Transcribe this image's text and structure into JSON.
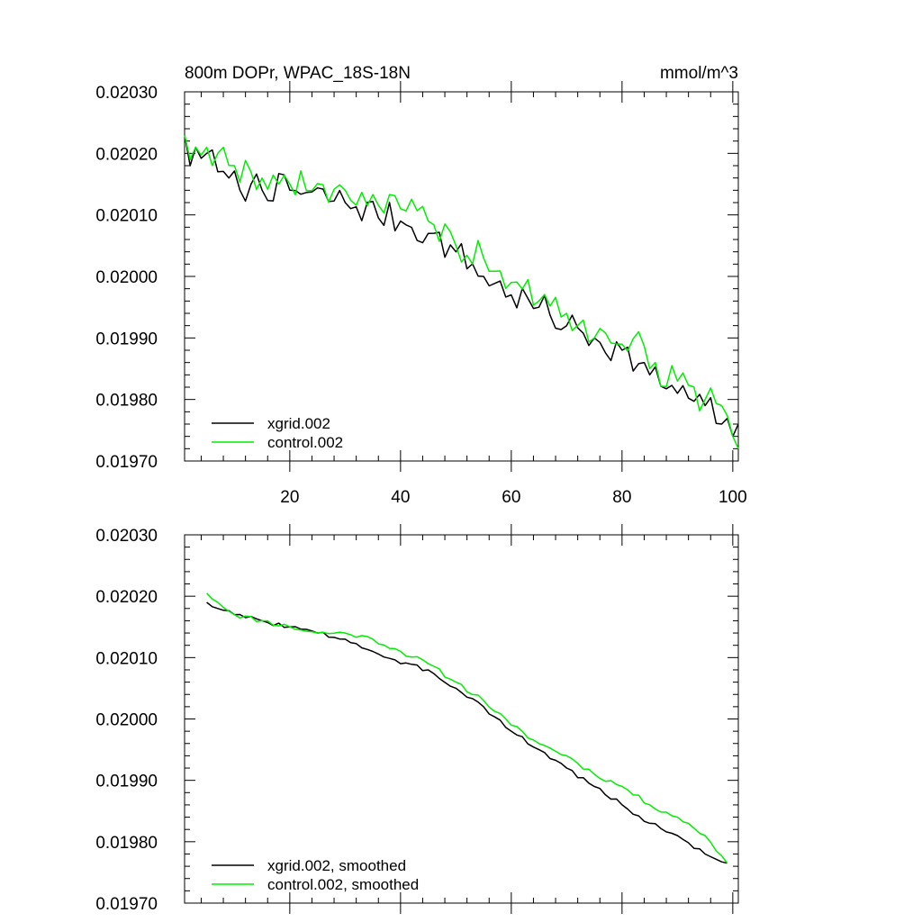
{
  "chart_data": [
    {
      "type": "line",
      "title": "800m DOPr, WPAC_18S-18N",
      "units": "mmol/m^3",
      "xlabel": "",
      "ylabel": "",
      "xlim": [
        1,
        101
      ],
      "ylim": [
        0.0197,
        0.0203
      ],
      "x_ticks": [
        "20",
        "40",
        "60",
        "80",
        "100"
      ],
      "y_ticks": [
        "0.02030",
        "0.02020",
        "0.02010",
        "0.02000",
        "0.01990",
        "0.01980",
        "0.01970"
      ],
      "legend_position": "bottom-left",
      "series": [
        {
          "name": "xgrid.002",
          "color": "#000000",
          "anchors": [
            [
              1,
              0.02023
            ],
            [
              2,
              0.02018
            ],
            [
              3,
              0.02021
            ],
            [
              5,
              0.0202
            ],
            [
              7,
              0.02017
            ],
            [
              9,
              0.02016
            ],
            [
              11,
              0.02014
            ],
            [
              13,
              0.02015
            ],
            [
              20,
              0.02014
            ],
            [
              30,
              0.02012
            ],
            [
              40,
              0.02009
            ],
            [
              45,
              0.02007
            ],
            [
              50,
              0.02004
            ],
            [
              55,
              0.02
            ],
            [
              60,
              0.01997
            ],
            [
              65,
              0.01995
            ],
            [
              70,
              0.01992
            ],
            [
              75,
              0.0199
            ],
            [
              80,
              0.01988
            ],
            [
              85,
              0.01984
            ],
            [
              90,
              0.01981
            ],
            [
              95,
              0.01979
            ],
            [
              98,
              0.01976
            ],
            [
              100,
              0.01974
            ],
            [
              101,
              0.01976
            ]
          ],
          "noise": 2.5e-05,
          "seed": 7
        },
        {
          "name": "control.002",
          "color": "#00ee00",
          "anchors": [
            [
              1,
              0.02023
            ],
            [
              2,
              0.02019
            ],
            [
              3,
              0.02021
            ],
            [
              5,
              0.02021
            ],
            [
              7,
              0.0202
            ],
            [
              10,
              0.02018
            ],
            [
              15,
              0.02016
            ],
            [
              20,
              0.02015
            ],
            [
              30,
              0.02014
            ],
            [
              40,
              0.02011
            ],
            [
              45,
              0.02009
            ],
            [
              50,
              0.02005
            ],
            [
              55,
              0.02003
            ],
            [
              60,
              0.01999
            ],
            [
              65,
              0.01996
            ],
            [
              70,
              0.01994
            ],
            [
              75,
              0.0199
            ],
            [
              80,
              0.01989
            ],
            [
              83,
              0.01991
            ],
            [
              85,
              0.01985
            ],
            [
              90,
              0.01983
            ],
            [
              95,
              0.0198
            ],
            [
              98,
              0.01979
            ],
            [
              100,
              0.01974
            ],
            [
              101,
              0.01972
            ]
          ],
          "noise": 2.5e-05,
          "seed": 19
        }
      ]
    },
    {
      "type": "line",
      "title": "",
      "xlabel": "",
      "ylabel": "",
      "xlim": [
        1,
        101
      ],
      "ylim": [
        0.0197,
        0.0203
      ],
      "y_ticks": [
        "0.02030",
        "0.02020",
        "0.02010",
        "0.02000",
        "0.01990",
        "0.01980",
        "0.01970"
      ],
      "legend_position": "bottom-left",
      "series": [
        {
          "name": "xgrid.002, smoothed",
          "color": "#000000",
          "anchors": [
            [
              5,
              0.02019
            ],
            [
              7,
              0.02018
            ],
            [
              10,
              0.02017
            ],
            [
              15,
              0.02016
            ],
            [
              20,
              0.02015
            ],
            [
              25,
              0.02014
            ],
            [
              30,
              0.02013
            ],
            [
              35,
              0.02011
            ],
            [
              40,
              0.02009
            ],
            [
              45,
              0.02008
            ],
            [
              50,
              0.02005
            ],
            [
              55,
              0.02002
            ],
            [
              60,
              0.01998
            ],
            [
              65,
              0.01995
            ],
            [
              70,
              0.01992
            ],
            [
              75,
              0.01989
            ],
            [
              80,
              0.01986
            ],
            [
              85,
              0.01983
            ],
            [
              90,
              0.01981
            ],
            [
              95,
              0.01978
            ],
            [
              99,
              0.019765
            ]
          ],
          "noise": 4e-06,
          "seed": 3
        },
        {
          "name": "control.002, smoothed",
          "color": "#00ee00",
          "anchors": [
            [
              5,
              0.020205
            ],
            [
              7,
              0.02019
            ],
            [
              10,
              0.02017
            ],
            [
              15,
              0.02016
            ],
            [
              20,
              0.02015
            ],
            [
              25,
              0.02014
            ],
            [
              30,
              0.02014
            ],
            [
              35,
              0.02013
            ],
            [
              40,
              0.02011
            ],
            [
              45,
              0.02009
            ],
            [
              50,
              0.02006
            ],
            [
              55,
              0.02003
            ],
            [
              60,
              0.01999
            ],
            [
              65,
              0.01996
            ],
            [
              70,
              0.01994
            ],
            [
              75,
              0.01991
            ],
            [
              80,
              0.01989
            ],
            [
              85,
              0.01986
            ],
            [
              90,
              0.01984
            ],
            [
              95,
              0.01981
            ],
            [
              99,
              0.019765
            ]
          ],
          "noise": 4e-06,
          "seed": 11
        }
      ]
    }
  ]
}
